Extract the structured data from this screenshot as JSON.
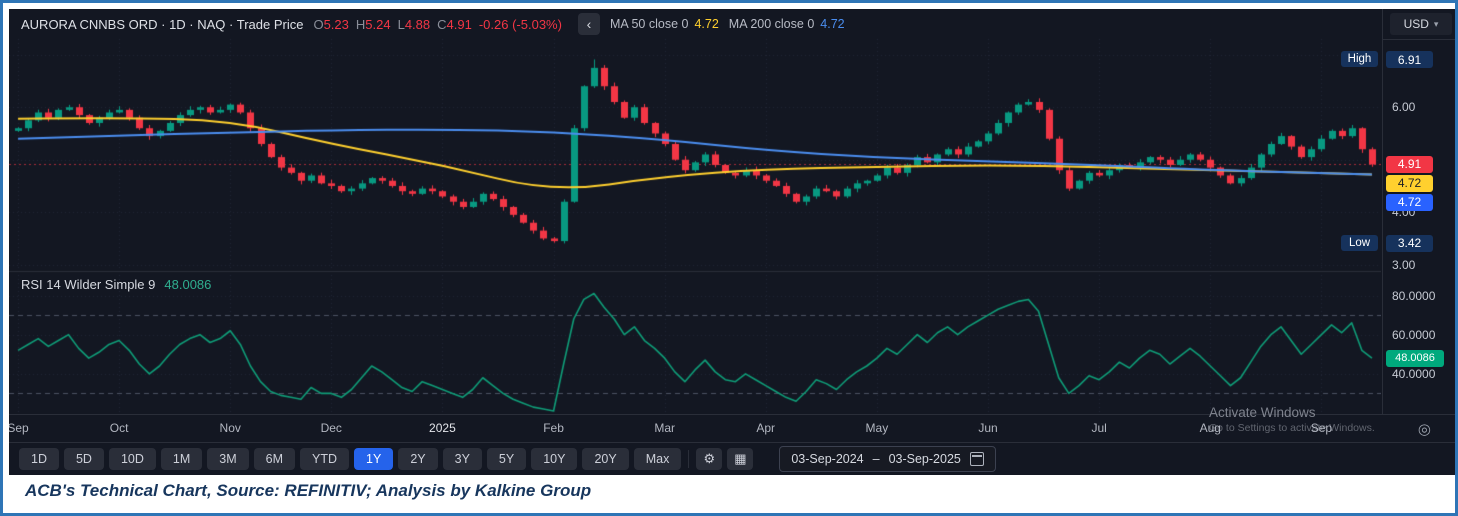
{
  "header": {
    "title": "AURORA CNNBS ORD · 1D · NAQ · Trade Price",
    "ohlc": {
      "o_label": "O",
      "o": "5.23",
      "h_label": "H",
      "h": "5.24",
      "l_label": "L",
      "l": "4.88",
      "c_label": "C",
      "c": "4.91",
      "change": "-0.26 (-5.03%)"
    },
    "ma50": {
      "label": "MA 50 close 0",
      "value": "4.72"
    },
    "ma200": {
      "label": "MA 200 close 0",
      "value": "4.72"
    },
    "currency": "USD"
  },
  "icons": {
    "back": "‹",
    "caret": "▾",
    "gear": "⚙",
    "grid": "▦",
    "target": "◎"
  },
  "rsi_header": {
    "label": "RSI 14 Wilder Simple 9",
    "value": "48.0086"
  },
  "price_axis": {
    "currency": "USD",
    "ticks": [
      6.0,
      4.0,
      3.0
    ],
    "high_label": "High",
    "low_label": "Low"
  },
  "watermark": {
    "line1": "Activate Windows",
    "line2": "Go to Settings to activate Windows."
  },
  "toolbar": {
    "ranges": [
      "1D",
      "5D",
      "10D",
      "1M",
      "3M",
      "6M",
      "YTD",
      "1Y",
      "2Y",
      "3Y",
      "5Y",
      "10Y",
      "20Y",
      "Max"
    ],
    "active": "1Y",
    "date_from": "03-Sep-2024",
    "range_sep": "–",
    "date_to": "03-Sep-2025"
  },
  "caption": "ACB's Technical Chart, Source: REFINITIV; Analysis by Kalkine Group",
  "colors": {
    "background": "#131722",
    "grid": "#212634",
    "up": "#089981",
    "down": "#f23645",
    "ma50": "#ffd02e",
    "ma200": "#4b8ef0",
    "rsi_line": "#0f9d78",
    "rsi_badge": "#00a97d",
    "badge_navy": "#16325c",
    "band": "#4b5262",
    "accent": "#2563eb",
    "frame": "#2e75b6"
  },
  "chart_data": [
    {
      "type": "candlestick",
      "title": "AURORA CNNBS ORD 1D NAQ Trade Price",
      "x_months": [
        "Sep",
        "Oct",
        "Nov",
        "Dec",
        "2025",
        "Feb",
        "Mar",
        "Apr",
        "May",
        "Jun",
        "Jul",
        "Aug",
        "Sep"
      ],
      "month_start_idx": [
        0,
        10,
        21,
        31,
        42,
        53,
        64,
        74,
        85,
        96,
        107,
        118,
        129
      ],
      "closes": [
        5.6,
        5.75,
        5.9,
        5.8,
        5.95,
        6.0,
        5.85,
        5.7,
        5.8,
        5.9,
        5.95,
        5.8,
        5.6,
        5.45,
        5.55,
        5.7,
        5.85,
        5.95,
        6.0,
        5.9,
        5.95,
        6.05,
        5.9,
        5.6,
        5.3,
        5.05,
        4.85,
        4.75,
        4.6,
        4.7,
        4.55,
        4.5,
        4.4,
        4.45,
        4.55,
        4.65,
        4.6,
        4.5,
        4.4,
        4.35,
        4.45,
        4.4,
        4.3,
        4.2,
        4.1,
        4.2,
        4.35,
        4.25,
        4.1,
        3.95,
        3.8,
        3.65,
        3.5,
        3.45,
        4.2,
        5.6,
        6.4,
        6.75,
        6.4,
        6.1,
        5.8,
        6.0,
        5.7,
        5.5,
        5.3,
        5.0,
        4.8,
        4.95,
        5.1,
        4.9,
        4.75,
        4.7,
        4.8,
        4.7,
        4.6,
        4.5,
        4.35,
        4.2,
        4.3,
        4.45,
        4.4,
        4.3,
        4.45,
        4.55,
        4.6,
        4.7,
        4.85,
        4.75,
        4.9,
        5.05,
        4.95,
        5.1,
        5.2,
        5.1,
        5.25,
        5.35,
        5.5,
        5.7,
        5.9,
        6.05,
        6.1,
        5.95,
        5.4,
        4.8,
        4.45,
        4.6,
        4.75,
        4.7,
        4.8,
        4.9,
        4.85,
        4.95,
        5.05,
        5.0,
        4.9,
        5.0,
        5.1,
        5.0,
        4.85,
        4.7,
        4.55,
        4.65,
        4.85,
        5.1,
        5.3,
        5.45,
        5.25,
        5.05,
        5.2,
        5.4,
        5.55,
        5.45,
        5.6,
        5.2,
        4.91
      ],
      "spike_high": {
        "index": 57,
        "value": 6.91
      },
      "spike_low": {
        "index": 53,
        "value": 3.42
      },
      "high": 6.91,
      "low": 3.42,
      "last": 4.91,
      "open": 5.23,
      "day_high": 5.24,
      "day_low": 4.88,
      "close": 4.91,
      "change": -0.26,
      "change_pct": -5.03,
      "ylim": [
        2.88,
        7.3
      ],
      "y_ticks": [
        6.0,
        4.0,
        3.0
      ],
      "series": [
        {
          "name": "MA 50 close",
          "color": "#ffd02e",
          "last": 4.72,
          "anchor_idx": [
            0,
            10,
            21,
            31,
            42,
            53,
            64,
            74,
            85,
            96,
            107,
            118,
            134
          ],
          "values": [
            5.78,
            5.8,
            5.75,
            5.3,
            4.9,
            4.38,
            4.68,
            4.82,
            4.86,
            4.9,
            4.86,
            4.8,
            4.72
          ]
        },
        {
          "name": "MA 200 close",
          "color": "#4b8ef0",
          "last": 4.72,
          "anchor_idx": [
            0,
            10,
            21,
            31,
            42,
            53,
            64,
            74,
            85,
            96,
            107,
            118,
            134
          ],
          "values": [
            5.4,
            5.46,
            5.52,
            5.56,
            5.58,
            5.53,
            5.38,
            5.18,
            5.04,
            4.97,
            4.9,
            4.8,
            4.72
          ]
        }
      ]
    },
    {
      "type": "line",
      "name": "RSI 14 Wilder Simple 9",
      "color": "#0f9d78",
      "current": 48.0086,
      "ylim": [
        20,
        92
      ],
      "y_ticks": [
        80,
        60,
        40
      ],
      "bands": [
        70,
        30
      ],
      "values": [
        52,
        55,
        58,
        54,
        57,
        60,
        53,
        48,
        51,
        55,
        57,
        52,
        45,
        40,
        44,
        50,
        55,
        58,
        60,
        56,
        58,
        62,
        55,
        44,
        36,
        31,
        29,
        28,
        27,
        33,
        30,
        30,
        28,
        32,
        38,
        44,
        41,
        37,
        33,
        31,
        36,
        34,
        32,
        30,
        28,
        32,
        38,
        34,
        30,
        27,
        25,
        23,
        22,
        21,
        45,
        68,
        78,
        81,
        74,
        68,
        60,
        64,
        57,
        53,
        48,
        41,
        36,
        42,
        47,
        41,
        37,
        36,
        40,
        37,
        34,
        31,
        28,
        26,
        31,
        37,
        35,
        32,
        37,
        41,
        44,
        48,
        53,
        50,
        55,
        60,
        56,
        61,
        64,
        60,
        64,
        67,
        70,
        73,
        75,
        77,
        78,
        72,
        55,
        38,
        30,
        34,
        39,
        37,
        41,
        46,
        43,
        48,
        52,
        50,
        45,
        49,
        53,
        49,
        44,
        39,
        34,
        38,
        46,
        54,
        60,
        64,
        57,
        50,
        55,
        60,
        65,
        61,
        66,
        52,
        48.0086
      ]
    }
  ]
}
